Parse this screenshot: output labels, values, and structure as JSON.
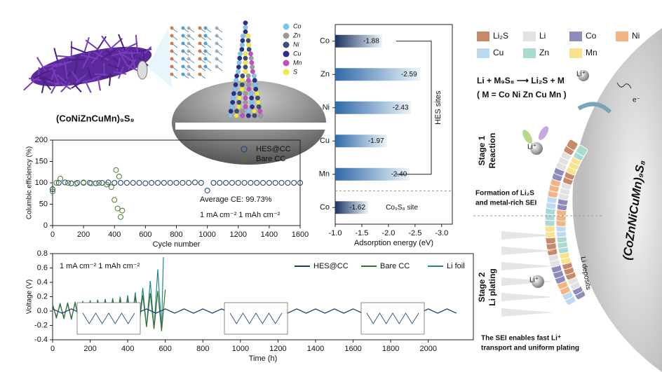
{
  "chart_data": [
    {
      "type": "scatter",
      "xlabel": "Cycle number",
      "ylabel": "Columbic efficiency (%)",
      "xlim": [
        0,
        1600
      ],
      "ylim": [
        0,
        200
      ],
      "xticks": [
        0,
        200,
        400,
        600,
        800,
        1000,
        1200,
        1400,
        1600
      ],
      "yticks": [
        0,
        50,
        100,
        150,
        200
      ],
      "legend": "upper right",
      "annotations": [
        "Average CE: 99.73%",
        "1 mA cm⁻²  1 mAh cm⁻²"
      ],
      "series": [
        {
          "name": "HES@CC",
          "color": "#1a3c6e",
          "x": [
            0,
            40,
            80,
            120,
            160,
            200,
            240,
            280,
            320,
            360,
            400,
            440,
            480,
            520,
            560,
            600,
            640,
            680,
            720,
            760,
            800,
            840,
            880,
            920,
            960,
            1000,
            1040,
            1080,
            1120,
            1160,
            1200,
            1240,
            1280,
            1320,
            1360,
            1400,
            1440,
            1480,
            1520,
            1560,
            1600
          ],
          "values": [
            85,
            100,
            101,
            99,
            100,
            100,
            100,
            99,
            100,
            101,
            100,
            100,
            100,
            100,
            100,
            99,
            100,
            100,
            100,
            100,
            100,
            100,
            100,
            101,
            100,
            82,
            100,
            100,
            100,
            100,
            100,
            100,
            100,
            100,
            100,
            100,
            100,
            100,
            100,
            100,
            100
          ]
        },
        {
          "name": "Bare CC",
          "color": "#4e7d2a",
          "x": [
            0,
            25,
            50,
            100,
            150,
            200,
            250,
            300,
            350,
            380,
            400,
            410,
            420,
            430,
            440,
            450
          ],
          "values": [
            80,
            100,
            110,
            100,
            98,
            101,
            99,
            100,
            96,
            90,
            60,
            130,
            40,
            115,
            20,
            35
          ]
        }
      ]
    },
    {
      "type": "bar",
      "orientation": "horizontal",
      "xlabel": "Adsorption energy (eV)",
      "categories": [
        "Co",
        "Zn",
        "Ni",
        "Cu",
        "Mn",
        "Co"
      ],
      "values": [
        -1.88,
        -2.59,
        -2.43,
        -1.97,
        -2.4,
        -1.62
      ],
      "value_labels": [
        "-1.88",
        "-2.59",
        "-2.43",
        "-1.97",
        "-2.40",
        "-1.62"
      ],
      "colors": [
        "#1c3464",
        "#2f6aa8",
        "#2f6aa8",
        "#2f6aa8",
        "#2f6aa8",
        "#1c3464"
      ],
      "xlim": [
        -1.0,
        -3.2
      ],
      "xticks": [
        {
          "value": -1,
          "label": "-1.0"
        },
        -1.5,
        {
          "value": -2,
          "label": "-2.0"
        },
        -2.5,
        {
          "value": -3,
          "label": "-3.0"
        }
      ],
      "annotations": [
        "HES sites",
        "Co₉S₈ site"
      ]
    },
    {
      "type": "line",
      "xlabel": "Time (h)",
      "ylabel": "Voltage (V)",
      "xlim": [
        0,
        2240
      ],
      "ylim": [
        -0.4,
        0.8
      ],
      "xticks": [
        0,
        200,
        400,
        600,
        800,
        1000,
        1200,
        1400,
        1600,
        1800,
        2000
      ],
      "yticks": [
        -0.4,
        -0.2,
        {
          "value": 0,
          "label": "0.0"
        },
        0.2,
        0.4,
        0.6,
        0.8
      ],
      "legend": "upper right",
      "annotations": [
        "1 mA cm⁻²  1 mAh cm⁻²"
      ],
      "series": [
        {
          "name": "HES@CC",
          "color": "#1a3c6e",
          "x": [
            0,
            50,
            100,
            150,
            200,
            250,
            300,
            350,
            400,
            450,
            500,
            550,
            600,
            650,
            700,
            750,
            800,
            850,
            900,
            950,
            1000,
            1050,
            1100,
            1150,
            1200,
            1250,
            1300,
            1350,
            1400,
            1450,
            1500,
            1550,
            1600,
            1650,
            1700,
            1750,
            1800,
            1850,
            1900,
            1950,
            2000,
            2050,
            2100,
            2150
          ],
          "values": [
            0.03,
            -0.03,
            0.03,
            -0.03,
            0.03,
            -0.03,
            0.03,
            -0.03,
            0.03,
            -0.03,
            0.03,
            -0.03,
            0.03,
            -0.03,
            0.03,
            -0.03,
            0.03,
            -0.03,
            0.03,
            -0.03,
            0.03,
            -0.03,
            0.03,
            -0.03,
            0.03,
            -0.03,
            0.03,
            -0.03,
            0.03,
            -0.03,
            0.03,
            -0.03,
            0.03,
            -0.03,
            0.03,
            -0.03,
            0.03,
            -0.03,
            0.03,
            -0.03,
            0.03,
            -0.03,
            0.03,
            -0.03
          ]
        },
        {
          "name": "Bare CC",
          "color": "#3f6e2a",
          "x": [
            0,
            20,
            40,
            60,
            80,
            100,
            120,
            140,
            160,
            180,
            200,
            220,
            240,
            260,
            280,
            300,
            320,
            340,
            360,
            380,
            400,
            420,
            440,
            460,
            480,
            500,
            520,
            540,
            560,
            580,
            600
          ],
          "values": [
            0.08,
            -0.08,
            0.09,
            -0.09,
            0.1,
            -0.1,
            0.11,
            -0.11,
            0.12,
            -0.12,
            0.13,
            -0.13,
            0.14,
            -0.14,
            0.15,
            -0.15,
            0.16,
            -0.16,
            0.17,
            -0.17,
            0.18,
            -0.18,
            0.2,
            -0.2,
            0.22,
            -0.22,
            0.25,
            -0.25,
            0.28,
            -0.28,
            0.3
          ]
        },
        {
          "name": "Li foil",
          "color": "#1b8a8f",
          "x": [
            0,
            20,
            40,
            60,
            80,
            100,
            120,
            140,
            160,
            180,
            200,
            220,
            240,
            260,
            280,
            300,
            320,
            340,
            360,
            380,
            400,
            420,
            440,
            460,
            480,
            500,
            520,
            540,
            560,
            580,
            590
          ],
          "values": [
            0.1,
            -0.1,
            0.11,
            -0.11,
            0.12,
            -0.12,
            0.13,
            -0.13,
            0.14,
            -0.14,
            0.15,
            -0.15,
            0.16,
            -0.16,
            0.17,
            -0.17,
            0.18,
            -0.18,
            0.2,
            -0.19,
            0.22,
            -0.2,
            0.26,
            -0.21,
            0.32,
            -0.22,
            0.42,
            -0.24,
            0.58,
            -0.26,
            0.75
          ]
        }
      ]
    }
  ],
  "illustration": {
    "material_label": "(CoNiZnCuMn)₉S₈",
    "elements": [
      {
        "name": "Co",
        "color": "#7fc4ea"
      },
      {
        "name": "Zn",
        "color": "#9a9a9a"
      },
      {
        "name": "Ni",
        "color": "#3b4f7a"
      },
      {
        "name": "Cu",
        "color": "#2c2f8a"
      },
      {
        "name": "Mn",
        "color": "#c24fc4"
      },
      {
        "name": "S",
        "color": "#f2e84a"
      }
    ]
  },
  "schematic": {
    "legend": [
      {
        "name": "Li₂S",
        "color": "#c68a6a"
      },
      {
        "name": "Li",
        "color": "#e2e2e2"
      },
      {
        "name": "Co",
        "color": "#8e8cbc"
      },
      {
        "name": "Ni",
        "color": "#f3b483"
      },
      {
        "name": "Cu",
        "color": "#bcdaf2"
      },
      {
        "name": "Zn",
        "color": "#a9d9d1"
      },
      {
        "name": "Mn",
        "color": "#f8e28c"
      }
    ],
    "reaction": "Li + M₉S₈ ⟶ Li₂S + M",
    "note": "( M = Co Ni Zn Cu Mn )",
    "ion": "Li⁺",
    "electron": "e⁻",
    "stage1": [
      "Stage 1",
      "Reaction"
    ],
    "stage1_note": [
      "Formation of Li₂S",
      "and metal-rich SEI"
    ],
    "material": "(CoZnNiCuMn)₉S₈",
    "stage2": [
      "Stage 2",
      "Li plating"
    ],
    "deposits": "Li deposits",
    "caption": [
      "The SEI enables fast Li⁺",
      "transport and uniform plating"
    ]
  }
}
